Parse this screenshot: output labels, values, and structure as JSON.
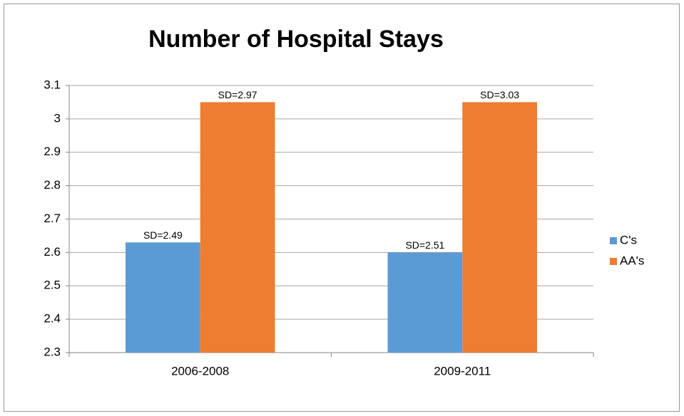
{
  "chart_data": {
    "type": "bar",
    "title": "Number of Hospital Stays",
    "categories": [
      "2006-2008",
      "2009-2011"
    ],
    "series": [
      {
        "name": "C's",
        "color": "#5b9bd5",
        "values": [
          2.63,
          2.6
        ],
        "annotations": [
          "SD=2.49",
          "SD=2.51"
        ]
      },
      {
        "name": "AA's",
        "color": "#ed7d31",
        "values": [
          3.05,
          3.05
        ],
        "annotations": [
          "SD=2.97",
          "SD=3.03"
        ]
      }
    ],
    "ylim": [
      2.3,
      3.1
    ],
    "yticks": [
      2.3,
      2.4,
      2.5,
      2.6,
      2.7,
      2.8,
      2.9,
      3,
      3.1
    ],
    "grid": true,
    "legend": "right"
  }
}
